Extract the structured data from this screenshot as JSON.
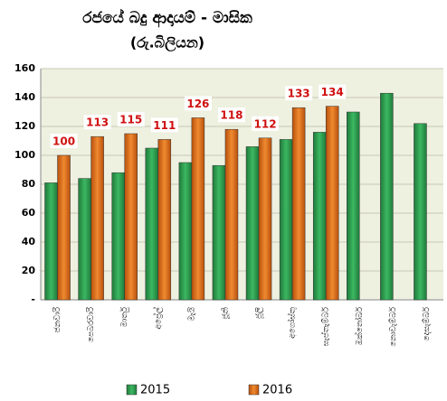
{
  "chart_data": {
    "type": "bar",
    "title": "රජයේ බදු ආදායම් - මාසික",
    "subtitle": "(රු.බිලියන)",
    "categories": [
      "ජනවාරි",
      "පෙබරවාරි",
      "මාර්තු",
      "අප්‍රේල්",
      "මැයි",
      "ජූනි",
      "ජූලි",
      "අගෝස්තු",
      "සැප්තැම්බර්",
      "ඔක්තෝබර්",
      "නොවැම්බර්",
      "දෙසැම්බර්"
    ],
    "series": [
      {
        "name": "2015",
        "color": "#2e9e4f",
        "values": [
          81,
          84,
          88,
          105,
          95,
          93,
          106,
          111,
          116,
          130,
          143,
          122
        ]
      },
      {
        "name": "2016",
        "color": "#e8731c",
        "values": [
          100,
          113,
          115,
          111,
          126,
          118,
          112,
          133,
          134,
          null,
          null,
          null
        ]
      }
    ],
    "data_labels_series": "2016",
    "ylim": [
      0,
      160
    ],
    "yticks": [
      {
        "value": 0,
        "label": "-"
      },
      20,
      40,
      60,
      80,
      100,
      120,
      140,
      160
    ],
    "grid": true,
    "legend": "bottom"
  }
}
